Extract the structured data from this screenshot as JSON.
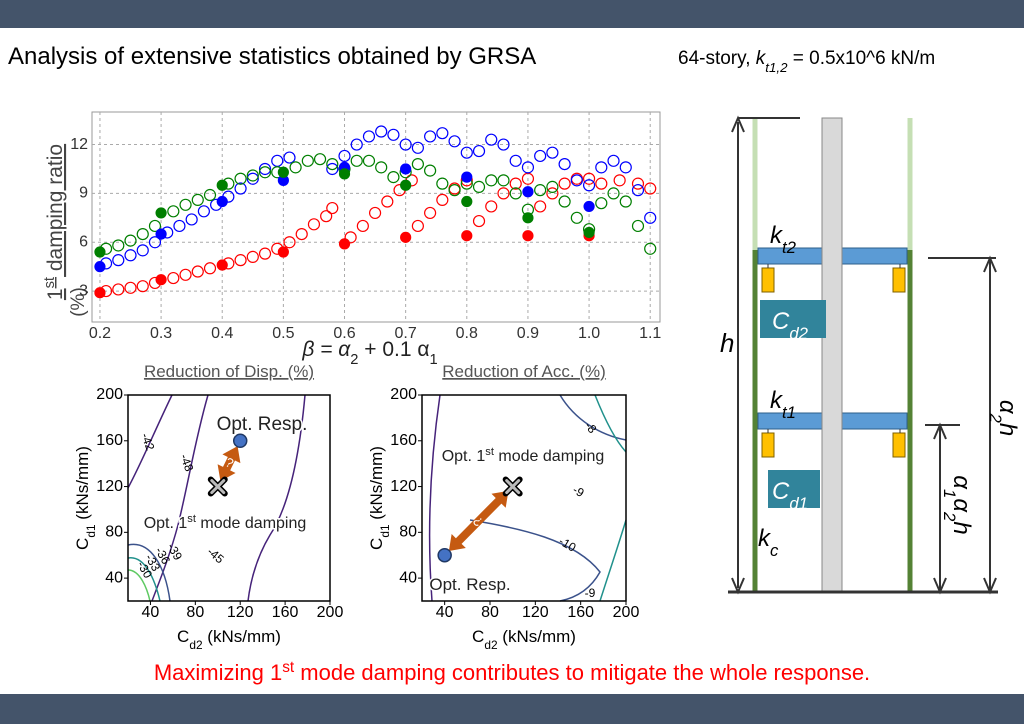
{
  "header": {
    "title": "Analysis of extensive statistics obtained by GRSA",
    "subtitle": [
      "64-story, ",
      "k",
      "t1,2",
      " = 0.5x10^6 kN/m"
    ]
  },
  "chart_data": [
    {
      "type": "scatter",
      "y_label": [
        "1",
        "st",
        " damping ratio",
        "(%)"
      ],
      "x_label": [
        "β = α",
        "2",
        " + 0.1 α",
        "1"
      ],
      "xlim": [
        0.187,
        1.116
      ],
      "ylim": [
        1.1,
        14.0
      ],
      "xticks": [
        0.2,
        0.3,
        0.4,
        0.5,
        0.6,
        0.7,
        0.8,
        0.9,
        {
          "value": 1,
          "label": "1.0"
        },
        1.1
      ],
      "yticks": [
        3,
        6,
        9,
        12
      ],
      "grid": true,
      "series": [
        {
          "color": "#ff0000",
          "filled": false,
          "x": [
            0.21,
            0.23,
            0.25,
            0.27,
            0.29,
            0.32,
            0.34,
            0.36,
            0.38,
            0.41,
            0.43,
            0.45,
            0.47,
            0.49,
            0.51,
            0.53,
            0.55,
            0.57,
            0.58,
            0.61,
            0.63,
            0.65,
            0.67,
            0.69,
            0.71,
            0.72,
            0.74,
            0.76,
            0.78,
            0.8,
            0.82,
            0.84,
            0.86,
            0.88,
            0.9,
            0.92,
            0.94,
            0.96,
            0.98,
            1.0,
            1.02,
            1.05,
            1.08,
            1.1
          ],
          "values": [
            3.0,
            3.1,
            3.2,
            3.3,
            3.5,
            3.8,
            4.0,
            4.2,
            4.4,
            4.7,
            4.9,
            5.1,
            5.3,
            5.6,
            6.0,
            6.5,
            7.1,
            7.6,
            8.1,
            6.3,
            7.0,
            7.8,
            8.5,
            9.2,
            9.8,
            7.0,
            7.8,
            8.6,
            9.3,
            9.8,
            7.3,
            8.2,
            9.0,
            9.6,
            9.9,
            8.2,
            9.0,
            9.6,
            9.9,
            9.9,
            9.6,
            9.8,
            9.6,
            9.3
          ]
        },
        {
          "color": "#0000ff",
          "filled": false,
          "x": [
            0.21,
            0.23,
            0.25,
            0.27,
            0.29,
            0.31,
            0.33,
            0.35,
            0.37,
            0.39,
            0.41,
            0.43,
            0.45,
            0.47,
            0.49,
            0.51,
            0.58,
            0.6,
            0.62,
            0.64,
            0.66,
            0.68,
            0.7,
            0.72,
            0.74,
            0.76,
            0.78,
            0.8,
            0.82,
            0.84,
            0.86,
            0.88,
            0.9,
            0.92,
            0.94,
            0.96,
            0.98,
            1.0,
            1.02,
            1.04,
            1.06,
            1.08,
            1.1
          ],
          "values": [
            4.7,
            4.9,
            5.2,
            5.5,
            6.0,
            6.6,
            7.0,
            7.4,
            7.9,
            8.3,
            8.8,
            9.3,
            9.9,
            10.5,
            11.0,
            11.2,
            10.5,
            11.3,
            12.0,
            12.5,
            12.8,
            12.6,
            12.0,
            11.8,
            12.5,
            12.7,
            12.2,
            11.5,
            11.6,
            12.3,
            12.0,
            11.0,
            10.6,
            11.3,
            11.5,
            10.8,
            9.8,
            9.5,
            10.6,
            11.0,
            10.6,
            9.2,
            7.5
          ]
        },
        {
          "color": "#007f00",
          "filled": false,
          "x": [
            0.21,
            0.23,
            0.25,
            0.27,
            0.29,
            0.32,
            0.34,
            0.36,
            0.38,
            0.41,
            0.43,
            0.45,
            0.47,
            0.49,
            0.52,
            0.54,
            0.56,
            0.58,
            0.6,
            0.62,
            0.64,
            0.66,
            0.68,
            0.7,
            0.72,
            0.74,
            0.76,
            0.78,
            0.8,
            0.82,
            0.84,
            0.86,
            0.88,
            0.9,
            0.92,
            0.94,
            0.96,
            0.98,
            1.0,
            1.02,
            1.04,
            1.06,
            1.08,
            1.1
          ],
          "values": [
            5.6,
            5.8,
            6.1,
            6.5,
            7.0,
            7.9,
            8.3,
            8.6,
            8.9,
            9.6,
            9.9,
            10.1,
            10.3,
            10.3,
            10.6,
            11.0,
            11.1,
            10.8,
            10.5,
            11.0,
            11.0,
            10.6,
            10.0,
            10.3,
            10.8,
            10.4,
            9.6,
            9.2,
            9.6,
            9.4,
            9.8,
            9.8,
            9.0,
            8.0,
            9.2,
            9.4,
            8.5,
            7.5,
            6.8,
            8.4,
            9.0,
            8.5,
            7.0,
            5.6
          ]
        },
        {
          "color": "#ff0000",
          "filled": true,
          "x": [
            0.2,
            0.3,
            0.4,
            0.5,
            0.6,
            0.7,
            0.8,
            0.9,
            1.0
          ],
          "values": [
            2.9,
            3.7,
            4.6,
            5.4,
            5.9,
            6.3,
            6.4,
            6.4,
            6.4
          ]
        },
        {
          "color": "#0000ff",
          "filled": true,
          "x": [
            0.2,
            0.3,
            0.4,
            0.5,
            0.6,
            0.7,
            0.8,
            0.9,
            1.0
          ],
          "values": [
            4.5,
            6.5,
            8.5,
            9.8,
            10.6,
            10.5,
            10.0,
            9.1,
            8.2
          ]
        },
        {
          "color": "#007f00",
          "filled": true,
          "x": [
            0.2,
            0.3,
            0.4,
            0.5,
            0.6,
            0.7,
            0.8,
            0.9,
            1.0
          ],
          "values": [
            5.4,
            7.8,
            9.5,
            10.3,
            10.2,
            9.5,
            8.5,
            7.5,
            6.6
          ]
        }
      ]
    },
    {
      "type": "contour",
      "title": "Reduction of Disp. (%)",
      "x_label": [
        "C",
        "d2",
        " (kNs/mm)"
      ],
      "y_label": [
        "C",
        "d1",
        " (kNs/mm)"
      ],
      "xlim": [
        20,
        200
      ],
      "ylim": [
        20,
        200
      ],
      "xticks": [
        40,
        80,
        120,
        160,
        200
      ],
      "yticks": [
        40,
        80,
        120,
        160,
        200
      ],
      "contour_labels": [
        -42,
        -48,
        -45,
        -39,
        -36,
        -33,
        -30
      ],
      "opt_resp": {
        "label": "Opt. Resp.",
        "x": 120,
        "y": 160
      },
      "opt_damping": {
        "label": [
          "Opt.  1",
          "st",
          " mode  damping"
        ],
        "x": 100,
        "y": 120
      },
      "arrow_label": "?"
    },
    {
      "type": "contour",
      "title": "Reduction of Acc. (%)",
      "x_label": [
        "C",
        "d2",
        " (kNs/mm)"
      ],
      "y_label": [
        "C",
        "d1",
        " (kNs/mm)"
      ],
      "xlim": [
        20,
        200
      ],
      "ylim": [
        20,
        200
      ],
      "xticks": [
        40,
        80,
        120,
        160,
        200
      ],
      "yticks": [
        40,
        80,
        120,
        160,
        200
      ],
      "contour_labels": [
        -8,
        -9,
        -10,
        -9
      ],
      "opt_resp": {
        "label": "Opt. Resp.",
        "x": 40,
        "y": 60
      },
      "opt_damping": {
        "label": [
          "Opt.  1",
          "st",
          " mode  damping"
        ],
        "x": 100,
        "y": 120
      },
      "arrow_label": "?"
    }
  ],
  "diagram": {
    "kt2": [
      "k",
      "t2"
    ],
    "cd2": [
      "C",
      "d2"
    ],
    "kt1": [
      "k",
      "t1"
    ],
    "cd1": [
      "C",
      "d1"
    ],
    "kc": [
      "k",
      "c"
    ],
    "h": "h",
    "a2h": [
      "α",
      "2",
      "h"
    ],
    "a1a2h": [
      "α",
      "1",
      "α",
      "2",
      "h"
    ]
  },
  "footer": [
    "Maximizing 1",
    "st",
    " mode damping contributes to mitigate the whole response."
  ]
}
